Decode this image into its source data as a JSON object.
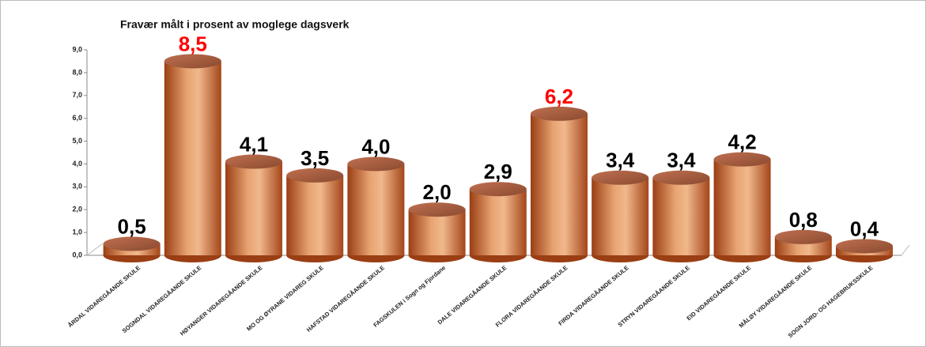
{
  "chart_data": {
    "type": "bar",
    "title": "Fravær målt i prosent av moglege dagsverk",
    "categories": [
      "ÅRDAL VIDAREGÅANDE SKULE",
      "SOGNDAL VIDAREGÅANDE SKULE",
      "HØYANGER VIDAREGÅANDE SKULE",
      "MO OG ØYRANE VIDAREG SKULE",
      "HAFSTAD VIDAREGÅANDE SKULE",
      "FAGSKULEN i Sogn og Fjordane",
      "DALE VIDAREGÅANDE SKULE",
      "FLORA VIDAREGÅANDE SKULE",
      "FIRDA VIDAREGÅANDE SKULE",
      "STRYN VIDAREGÅANDE SKULE",
      "EID VIDAREGÅANDE SKULE",
      "MÅLØY VIDAREGÅANDE SKULE",
      "SOGN JORD- OG HAGEBRUKSSKULE"
    ],
    "values": [
      0.5,
      8.5,
      4.1,
      3.5,
      4.0,
      2.0,
      2.9,
      6.2,
      3.4,
      3.4,
      4.2,
      0.8,
      0.4
    ],
    "value_labels": [
      "0,5",
      "8,5",
      "4,1",
      "3,5",
      "4,0",
      "2,0",
      "2,9",
      "6,2",
      "3,4",
      "3,4",
      "4,2",
      "0,8",
      "0,4"
    ],
    "value_label_colors": [
      "#000000",
      "#ff0000",
      "#000000",
      "#000000",
      "#000000",
      "#000000",
      "#000000",
      "#ff0000",
      "#000000",
      "#000000",
      "#000000",
      "#000000",
      "#000000"
    ],
    "color": "#c8703c",
    "ylim": [
      0,
      9
    ],
    "yticks": [
      {
        "value": 0,
        "label": "0,0"
      },
      {
        "value": 1,
        "label": "1,0"
      },
      {
        "value": 2,
        "label": "2,0"
      },
      {
        "value": 3,
        "label": "3,0"
      },
      {
        "value": 4,
        "label": "4,0"
      },
      {
        "value": 5,
        "label": "5,0"
      },
      {
        "value": 6,
        "label": "6,0"
      },
      {
        "value": 7,
        "label": "7,0"
      },
      {
        "value": 8,
        "label": "8,0"
      },
      {
        "value": 9,
        "label": "9,0"
      }
    ],
    "grid": false
  }
}
